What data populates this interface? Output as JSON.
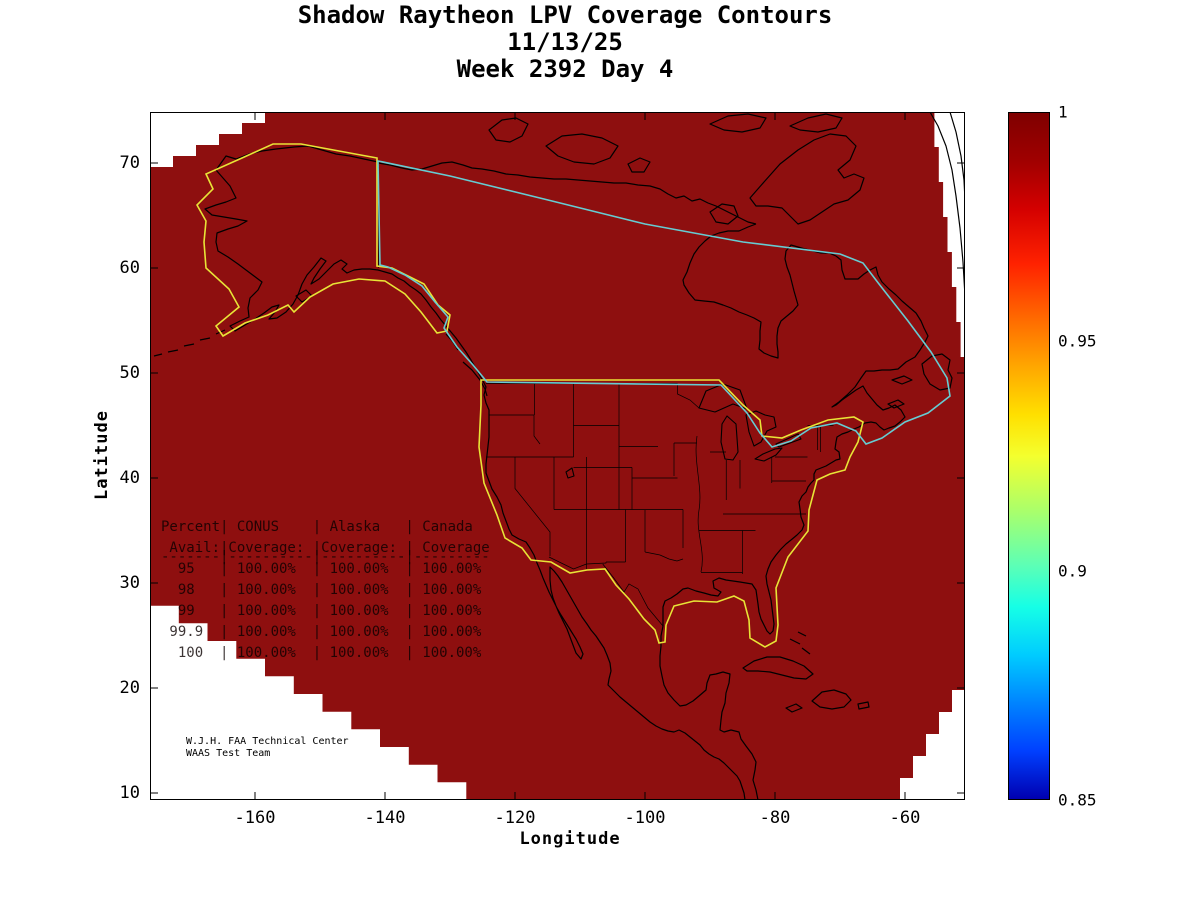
{
  "title": {
    "line1": "Shadow Raytheon LPV Coverage Contours",
    "line2": "11/13/25",
    "line3": "Week 2392 Day 4"
  },
  "axes": {
    "x": {
      "label": "Longitude",
      "range": [
        -176.2,
        -50.8
      ],
      "ticks": [
        {
          "v": -160,
          "label": "-160"
        },
        {
          "v": -140,
          "label": "-140"
        },
        {
          "v": -120,
          "label": "-120"
        },
        {
          "v": -100,
          "label": "-100"
        },
        {
          "v": -80,
          "label": "-80"
        },
        {
          "v": -60,
          "label": "-60"
        }
      ]
    },
    "y": {
      "label": "Latitude",
      "range": [
        9.3,
        74.9
      ],
      "ticks": [
        {
          "v": 70,
          "label": "70"
        },
        {
          "v": 60,
          "label": "60"
        },
        {
          "v": 50,
          "label": "50"
        },
        {
          "v": 40,
          "label": "40"
        },
        {
          "v": 30,
          "label": "30"
        },
        {
          "v": 20,
          "label": "20"
        },
        {
          "v": 10,
          "label": "10"
        }
      ]
    }
  },
  "colorbar": {
    "min": 0.85,
    "max": 1.0,
    "ticks": [
      {
        "v": 1,
        "label": "1"
      },
      {
        "v": 0.95,
        "label": "0.95"
      },
      {
        "v": 0.9,
        "label": "0.9"
      },
      {
        "v": 0.85,
        "label": "0.85"
      }
    ],
    "gradient": [
      "#7f0000 0%",
      "#a00000 7%",
      "#d40000 14%",
      "#ff2200 22%",
      "#ff6a00 30%",
      "#ffa700 37%",
      "#ffe000 44%",
      "#f4ff2e 50%",
      "#aaff6b 58%",
      "#5cffb6 66%",
      "#16ffe6 72%",
      "#00ccff 79%",
      "#0084ff 86%",
      "#0040ff 93%",
      "#0000b0 100%"
    ]
  },
  "colors": {
    "coverage": "#8e0f0f",
    "contour_yellow": "#e8e437",
    "contour_cyan": "#66ccd2",
    "coastline": "#000000"
  },
  "table": {
    "lines": [
      "Percent| CONUS    | Alaska   | Canada",
      " Avail:|Coverage: |Coverage: | Coverage",
      "  95   | 100.00%  | 100.00%  | 100.00%",
      "  98   | 100.00%  | 100.00%  | 100.00%",
      "  99   | 100.00%  | 100.00%  | 100.00%",
      " 99.9  | 100.00%  | 100.00%  | 100.00%",
      "  100  | 100.00%  | 100.00%  | 100.00%"
    ],
    "separator": "-------|----------|----------|---------",
    "columns": [
      "Percent Avail",
      "CONUS Coverage",
      "Alaska Coverage",
      "Canada Coverage"
    ],
    "rows": [
      [
        "95",
        "100.00%",
        "100.00%",
        "100.00%"
      ],
      [
        "98",
        "100.00%",
        "100.00%",
        "100.00%"
      ],
      [
        "99",
        "100.00%",
        "100.00%",
        "100.00%"
      ],
      [
        "99.9",
        "100.00%",
        "100.00%",
        "100.00%"
      ],
      [
        "100",
        "100.00%",
        "100.00%",
        "100.00%"
      ]
    ]
  },
  "annotation": {
    "line1": "W.J.H. FAA Technical Center",
    "line2": "WAAS Test Team"
  },
  "chart_data": {
    "type": "heatmap",
    "title": "Shadow Raytheon LPV Coverage Contours",
    "subtitle": [
      "11/13/25",
      "Week 2392 Day 4"
    ],
    "xlabel": "Longitude",
    "ylabel": "Latitude",
    "xlim": [
      -176.2,
      -50.8
    ],
    "ylim": [
      9.3,
      74.9
    ],
    "x_ticks": [
      -160,
      -140,
      -120,
      -100,
      -80,
      -60
    ],
    "y_ticks": [
      10,
      20,
      30,
      40,
      50,
      60,
      70
    ],
    "grid": false,
    "colorbar": {
      "min": 0.85,
      "max": 1.0,
      "ticks": [
        0.85,
        0.9,
        0.95,
        1
      ],
      "colormap": "jet",
      "dominant_value_shown": 1.0
    },
    "regions": [
      "CONUS",
      "Alaska",
      "Canada"
    ],
    "contour_legend": [
      {
        "color": "yellow",
        "meaning": "CONUS and Alaska coverage boundary"
      },
      {
        "color": "cyan",
        "meaning": "Canada coverage boundary"
      }
    ],
    "availability_table": {
      "columns": [
        "Percent Avail",
        "CONUS Coverage",
        "Alaska Coverage",
        "Canada Coverage"
      ],
      "rows": [
        [
          "95",
          "100.00%",
          "100.00%",
          "100.00%"
        ],
        [
          "98",
          "100.00%",
          "100.00%",
          "100.00%"
        ],
        [
          "99",
          "100.00%",
          "100.00%",
          "100.00%"
        ],
        [
          "99.9",
          "100.00%",
          "100.00%",
          "100.00%"
        ],
        [
          "100",
          "100.00%",
          "100.00%",
          "100.00%"
        ]
      ]
    },
    "annotation": "W.J.H. FAA Technical Center / WAAS Test Team"
  }
}
